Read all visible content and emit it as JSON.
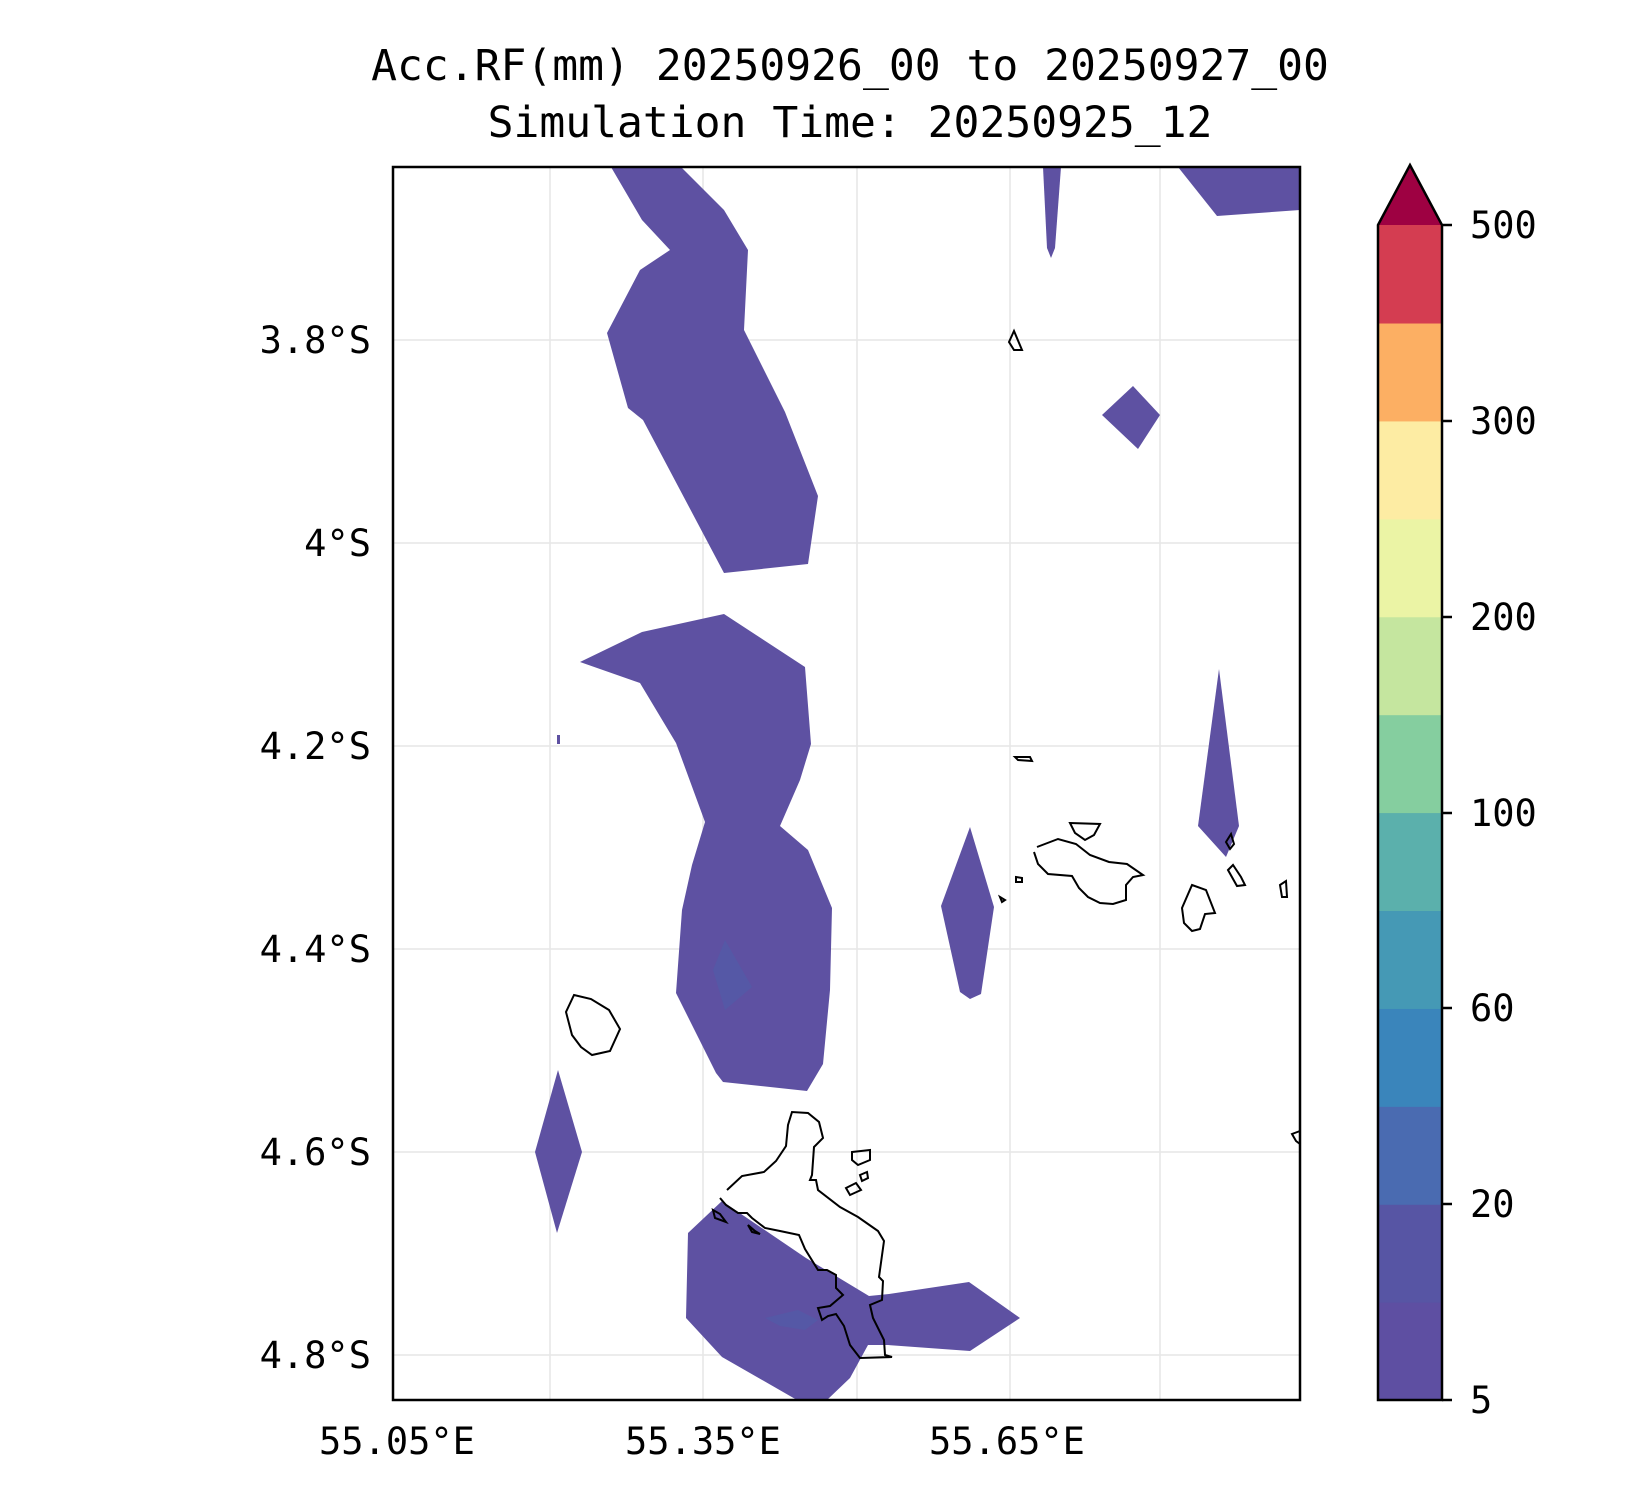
{
  "title": {
    "line1": "Acc.RF(mm) 20250926_00 to 20250927_00",
    "line2": "Simulation Time: 20250925_12"
  },
  "map": {
    "lon_ticks": [
      "55.05°E",
      "55.35°E",
      "55.65°E"
    ],
    "lat_ticks": [
      "3.8°S",
      "4°S",
      "4.2°S",
      "4.4°S",
      "4.6°S",
      "4.8°S"
    ],
    "gridlines": true
  },
  "colorbar": {
    "tick_labels": [
      "5",
      "20",
      "60",
      "100",
      "200",
      "300",
      "500"
    ],
    "levels": [
      5,
      10,
      20,
      40,
      60,
      80,
      100,
      150,
      200,
      250,
      300,
      400,
      500
    ],
    "colors": [
      "#5e4fa2",
      "#5755a4",
      "#4a6bb1",
      "#3a85bb",
      "#4599b5",
      "#5bb0ac",
      "#85ce9f",
      "#c5e69f",
      "#ebf4a5",
      "#fdeca3",
      "#fcaf63",
      "#d43d51"
    ],
    "extend_color": "#9e0142",
    "extend": "max"
  },
  "colors": {
    "rain_fill": "#5e51a2",
    "rain_fill_light": "#5558a6",
    "coastline": "#000000",
    "grid": "#e6e6e6"
  }
}
